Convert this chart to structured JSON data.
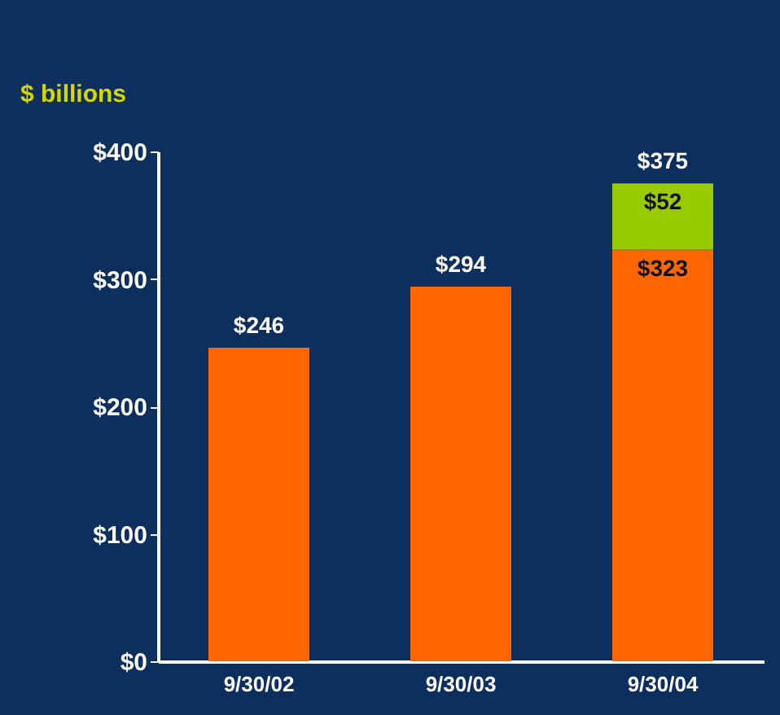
{
  "chart_data": {
    "type": "bar",
    "stacked": true,
    "ylabel": "$ billions",
    "categories": [
      "9/30/02",
      "9/30/03",
      "9/30/04"
    ],
    "series": [
      {
        "color": "#ff6600",
        "values": [
          246,
          294,
          323
        ],
        "value_labels": [
          null,
          null,
          "$323"
        ]
      },
      {
        "color": "#99cc00",
        "values": [
          null,
          null,
          52
        ],
        "value_labels": [
          null,
          null,
          "$52"
        ]
      }
    ],
    "totals": [
      "$246",
      "$294",
      "$375"
    ],
    "ylim": [
      0,
      400
    ],
    "yticks": [
      {
        "value": 0,
        "label": "$0"
      },
      {
        "value": 100,
        "label": "$100"
      },
      {
        "value": 200,
        "label": "$200"
      },
      {
        "value": 300,
        "label": "$300"
      },
      {
        "value": 400,
        "label": "$400"
      }
    ]
  }
}
